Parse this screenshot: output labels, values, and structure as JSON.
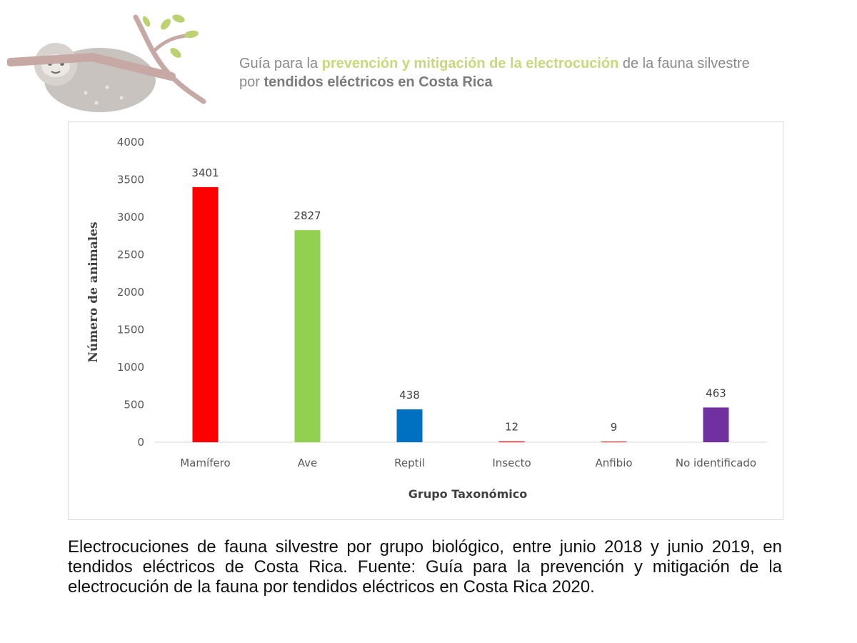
{
  "header": {
    "line1_part1": "Guía para la ",
    "line1_highlight": "prevención y mitigación de la electrocución",
    "line1_part2": " de la fauna silvestre",
    "line2_part1": "por ",
    "line2_bold": "tendidos eléctricos en Costa Rica"
  },
  "logo": {
    "icon": "sloth-on-branch-logo",
    "colors": {
      "fur": "#c8c3be",
      "branch": "#c6a8a4",
      "leaf": "#bcd16f"
    }
  },
  "chart_data": {
    "type": "bar",
    "categories": [
      "Mamífero",
      "Ave",
      "Reptil",
      "Insecto",
      "Anfibio",
      "No identificado"
    ],
    "values": [
      3401,
      2827,
      438,
      12,
      9,
      463
    ],
    "colors": [
      "#ff0000",
      "#92d050",
      "#0070c0",
      "#ff0000",
      "#ff0000",
      "#7030a0"
    ],
    "title": "",
    "xlabel": "Grupo Taxonómico",
    "ylabel": "Número de animales",
    "ylim": [
      0,
      4000
    ],
    "yticks": [
      0,
      500,
      1000,
      1500,
      2000,
      2500,
      3000,
      3500,
      4000
    ],
    "grid": false,
    "data_labels": true
  },
  "caption": "Electrocuciones de fauna silvestre por grupo biológico, entre junio 2018 y junio 2019, en tendidos eléctricos de Costa Rica. Fuente: Guía para la prevención y mitigación de la electrocución de la fauna por tendidos eléctricos en Costa Rica 2020."
}
